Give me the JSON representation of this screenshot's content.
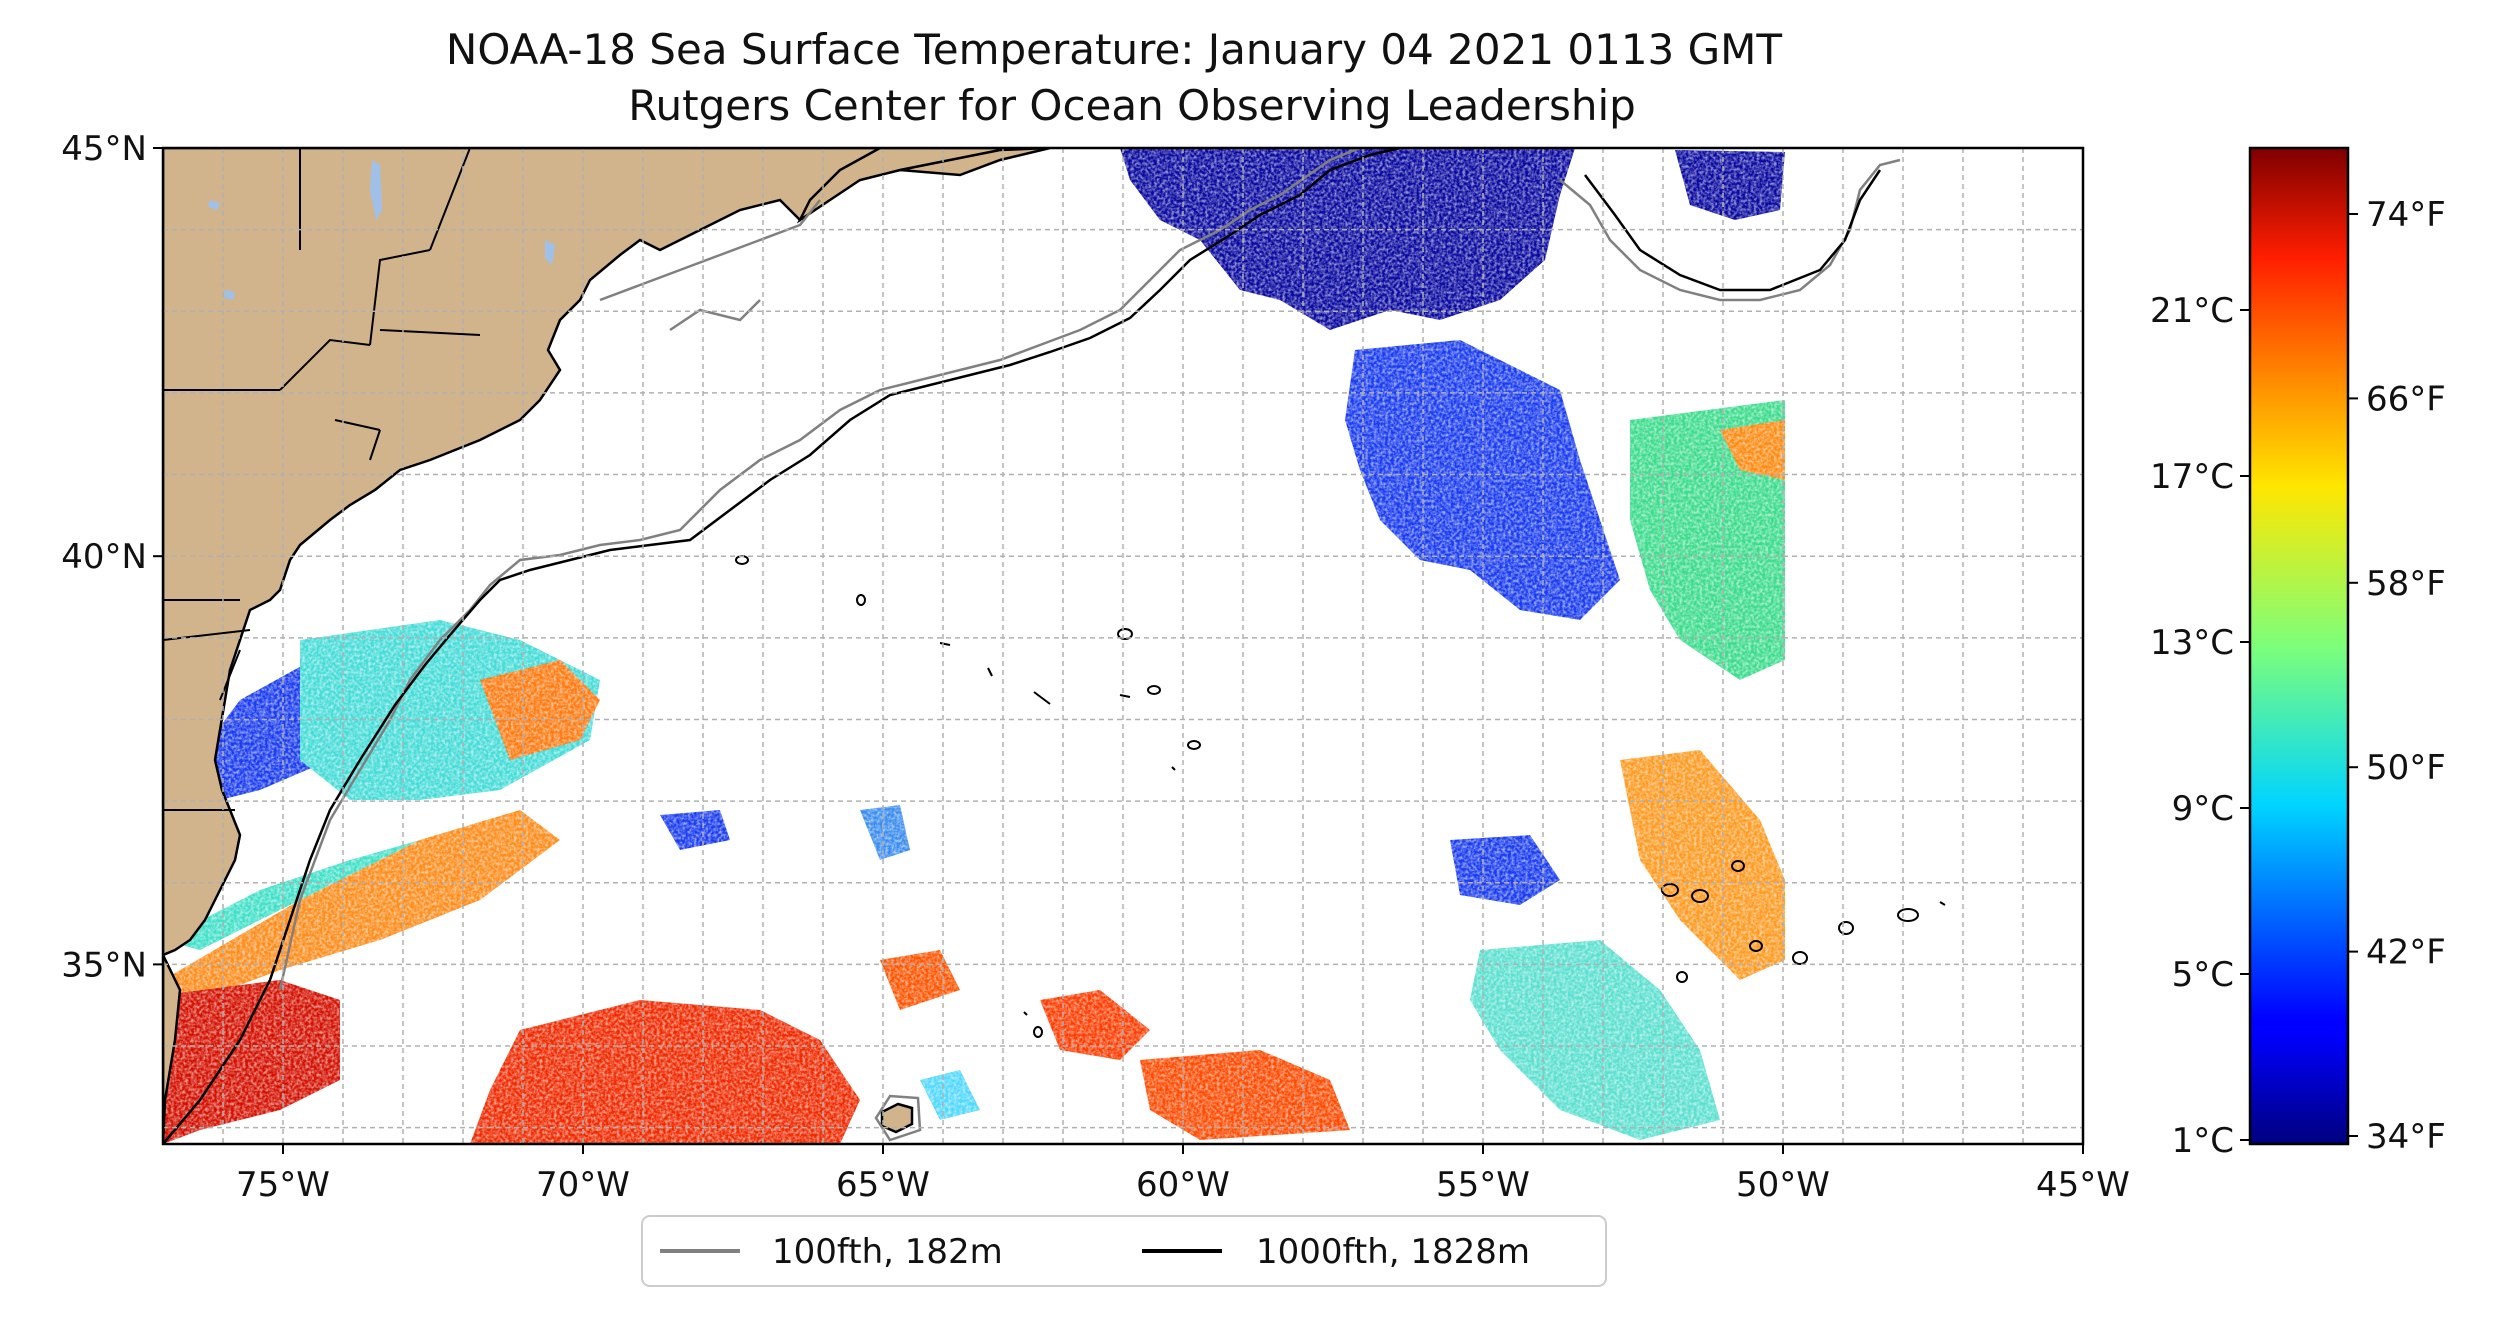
{
  "title": {
    "line1": "NOAA-18 Sea Surface Temperature: January 04 2021 0113 GMT",
    "line2": "Rutgers Center for Ocean Observing Leadership"
  },
  "map": {
    "lon_range": [
      -77,
      -45
    ],
    "lat_range": [
      32.8,
      45
    ],
    "lon_ticks": [
      {
        "value": -75,
        "label": "75°W"
      },
      {
        "value": -70,
        "label": "70°W"
      },
      {
        "value": -65,
        "label": "65°W"
      },
      {
        "value": -60,
        "label": "60°W"
      },
      {
        "value": -55,
        "label": "55°W"
      },
      {
        "value": -50,
        "label": "50°W"
      },
      {
        "value": -45,
        "label": "45°W"
      }
    ],
    "lat_ticks": [
      {
        "value": 45,
        "label": "45°N"
      },
      {
        "value": 40,
        "label": "40°N"
      },
      {
        "value": 35,
        "label": "35°N"
      }
    ],
    "gridlines": true,
    "colors": {
      "land": "#d2b48c",
      "lakes": "#9fc0e8",
      "isobath_100": "#808080",
      "isobath_1000": "#000000"
    }
  },
  "colorbar": {
    "colormap": "jet",
    "celsius_ticks": [
      "1°C",
      "5°C",
      "9°C",
      "13°C",
      "17°C",
      "21°C"
    ],
    "fahrenheit_ticks": [
      "34°F",
      "42°F",
      "50°F",
      "58°F",
      "66°F",
      "74°F"
    ]
  },
  "legend": {
    "entries": [
      {
        "label": "100fth, 182m",
        "color": "#808080"
      },
      {
        "label": "1000fth, 1828m",
        "color": "#000000"
      }
    ]
  }
}
